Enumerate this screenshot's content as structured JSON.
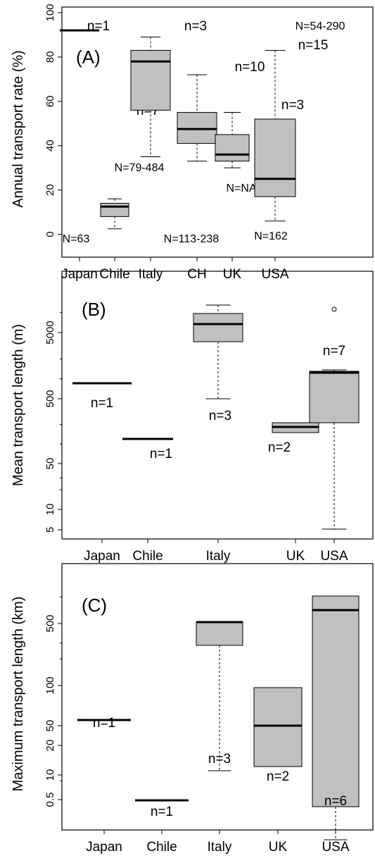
{
  "chart_data": [
    {
      "type": "box",
      "panel_label": "(A)",
      "ylabel": "Annual transport rate (%)",
      "ylim": [
        0,
        100
      ],
      "y_scale": "linear",
      "y_ticks": [
        0,
        20,
        40,
        60,
        80,
        100
      ],
      "categories": [
        "Japan",
        "Chile",
        "Italy",
        "CH",
        "UK",
        "USA"
      ],
      "boxes": [
        {
          "category": "Japan",
          "single_value": 92,
          "n_label": "n=1",
          "N_label": "N=63"
        },
        {
          "category": "Chile",
          "whisker_low": 2.5,
          "q1": 8,
          "median": 12.5,
          "q3": 14,
          "whisker_high": 16,
          "n_label": "n=7",
          "N_label": "N=79-484"
        },
        {
          "category": "Italy",
          "whisker_low": 35,
          "q1": 56,
          "median": 78,
          "q3": 83,
          "whisker_high": 89,
          "n_label": "n=3",
          "N_label": "N=113-238"
        },
        {
          "category": "CH",
          "whisker_low": 33,
          "q1": 41,
          "median": 47.5,
          "q3": 55,
          "whisker_high": 72,
          "n_label": "n=10",
          "N_label": "N=NA"
        },
        {
          "category": "UK",
          "whisker_low": 30,
          "q1": 33,
          "median": 36,
          "q3": 45,
          "whisker_high": 55,
          "n_label": "n=3",
          "N_label": "N=162"
        },
        {
          "category": "USA",
          "whisker_low": 6,
          "q1": 17,
          "median": 25,
          "q3": 52,
          "whisker_high": 83,
          "n_label": "n=15",
          "N_label": "N=54-290"
        }
      ]
    },
    {
      "type": "box",
      "panel_label": "(B)",
      "ylabel": "Mean transport length (m)",
      "y_scale": "log",
      "y_ticks": [
        5,
        10,
        50,
        500,
        5000
      ],
      "categories": [
        "Japan",
        "Chile",
        "Italy",
        "UK",
        "USA"
      ],
      "boxes": [
        {
          "category": "Japan",
          "single_value": 1100,
          "n_label": "n=1"
        },
        {
          "category": "Chile",
          "single_value": 120,
          "n_label": "n=1"
        },
        {
          "category": "Italy",
          "whisker_low": 300,
          "q1": 4000,
          "median": 7500,
          "q3": 11000,
          "whisker_high": 15000,
          "n_label": "n=3"
        },
        {
          "category": "UK",
          "whisker_low": 90,
          "q1": 90,
          "median": 100,
          "q3": 110,
          "whisker_high": 110,
          "n_label": "n=2"
        },
        {
          "category": "USA",
          "whisker_low": 5,
          "q1": 100,
          "median": 1500,
          "q3": 1700,
          "whisker_high": 1800,
          "outliers": [
            12000
          ],
          "n_label": "n=7"
        }
      ]
    },
    {
      "type": "box",
      "panel_label": "(C)",
      "ylabel": "Maximum transport length (km)",
      "y_scale": "log",
      "y_ticks": [
        0.5,
        10,
        20,
        50,
        100,
        500
      ],
      "y_tick_labels": [
        "0.5",
        "10",
        "20",
        "50",
        "100",
        "500"
      ],
      "categories": [
        "Japan",
        "Chile",
        "Italy",
        "UK",
        "USA"
      ],
      "boxes": [
        {
          "category": "Japan",
          "single_value": 39,
          "n_label": "n=1"
        },
        {
          "category": "Chile",
          "single_value": 0.35,
          "n_label": "n=1"
        },
        {
          "category": "Italy",
          "whisker_low": 28,
          "q1": 250,
          "median": 500,
          "q3": 500,
          "whisker_high": 500,
          "n_label": "n=3"
        },
        {
          "category": "UK",
          "whisker_low": 11,
          "q1": 11,
          "median": 33,
          "q3": 57,
          "whisker_high": 57,
          "n_label": "n=2"
        },
        {
          "category": "USA",
          "whisker_low": 0.18,
          "q1": 3,
          "median": 410,
          "q3": 1000,
          "whisker_high": 1000,
          "n_label": "n=6"
        }
      ]
    }
  ]
}
